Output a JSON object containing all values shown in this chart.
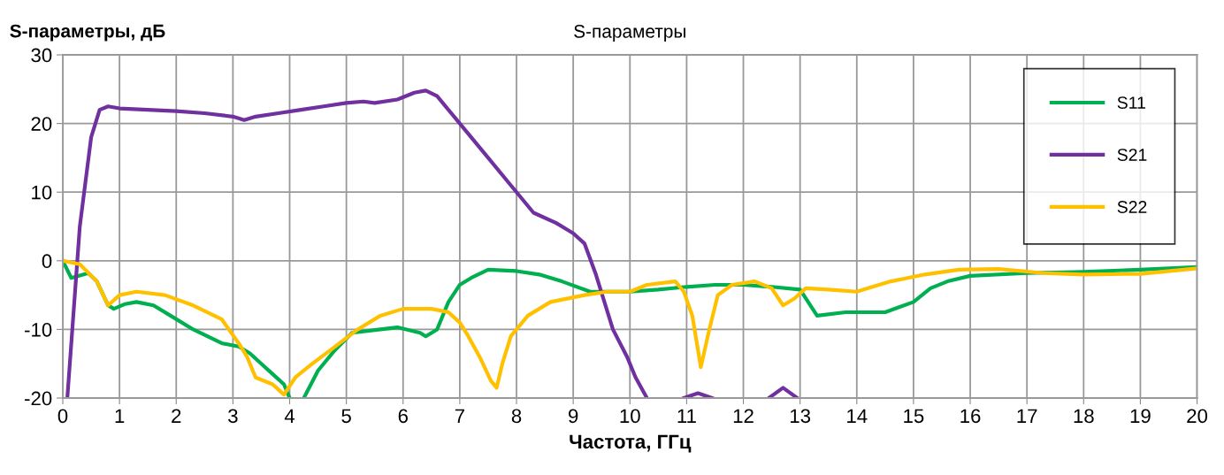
{
  "chart_data": {
    "type": "line",
    "title": "S-параметры",
    "xlabel": "Частота, ГГц",
    "ylabel": "S-параметры, дБ",
    "xlim": [
      0,
      20
    ],
    "xticks": [
      0,
      1,
      2,
      3,
      4,
      5,
      6,
      7,
      8,
      9,
      10,
      11,
      12,
      13,
      14,
      15,
      16,
      17,
      18,
      19,
      20
    ],
    "ylim": [
      -20,
      30
    ],
    "yticks": [
      -20,
      -10,
      0,
      10,
      20,
      30
    ],
    "grid": true,
    "legend": "top right",
    "marker": "none",
    "line_style": "solid",
    "series": [
      {
        "name": "S11",
        "color": "#00b050",
        "x": [
          0,
          0.15,
          0.45,
          0.6,
          0.8,
          0.9,
          1.1,
          1.3,
          1.6,
          1.9,
          2.3,
          2.8,
          3.1,
          3.3,
          3.5,
          3.7,
          3.9,
          4.0,
          4.1,
          4.25,
          4.5,
          4.8,
          5.1,
          5.6,
          5.9,
          6.3,
          6.4,
          6.6,
          6.8,
          7.0,
          7.2,
          7.5,
          8.0,
          8.4,
          8.8,
          9.3,
          10,
          10.5,
          11,
          11.5,
          12,
          12.5,
          13,
          13.3,
          13.8,
          14.5,
          15,
          15.3,
          15.6,
          16,
          17,
          18,
          19,
          20
        ],
        "values": [
          0,
          -2.5,
          -1.8,
          -3,
          -6.5,
          -7,
          -6.3,
          -6,
          -6.5,
          -8,
          -10,
          -12,
          -12.5,
          -13.5,
          -15,
          -16.5,
          -18,
          -20,
          null,
          -20,
          -16,
          -13,
          -10.5,
          -10,
          -9.7,
          -10.5,
          -11,
          -10,
          -6,
          -3.5,
          -2.5,
          -1.3,
          -1.5,
          -2,
          -3,
          -4.5,
          -4.5,
          -4.2,
          -3.8,
          -3.5,
          -3.5,
          -3.8,
          -4.2,
          -8,
          -7.5,
          -7.5,
          -6,
          -4,
          -3,
          -2.2,
          -1.8,
          -1.6,
          -1.3,
          -0.9
        ]
      },
      {
        "name": "S21",
        "color": "#7030a0",
        "x": [
          0.08,
          0.3,
          0.5,
          0.65,
          0.8,
          1,
          1.5,
          2,
          2.5,
          3,
          3.2,
          3.4,
          3.8,
          4.2,
          4.6,
          5,
          5.3,
          5.5,
          5.9,
          6.2,
          6.4,
          6.6,
          7,
          7.5,
          7.9,
          8.3,
          8.7,
          9,
          9.2,
          9.4,
          9.7,
          9.95,
          10.1,
          10.3,
          10.6,
          10.95,
          11.2,
          11.45,
          12,
          12.45,
          12.7,
          12.95
        ],
        "values": [
          -20,
          5,
          18,
          22,
          22.5,
          22.2,
          22,
          21.8,
          21.5,
          21,
          20.5,
          21,
          21.5,
          22,
          22.5,
          23,
          23.2,
          23,
          23.5,
          24.5,
          24.8,
          24,
          20,
          15,
          11,
          7,
          5.5,
          4,
          2.5,
          -2,
          -10,
          -14,
          -17,
          -20,
          null,
          -20,
          -19.3,
          -20,
          null,
          -20,
          -18.5,
          -20
        ]
      },
      {
        "name": "S22",
        "color": "#ffc000",
        "x": [
          0,
          0.3,
          0.6,
          0.8,
          1.0,
          1.3,
          1.8,
          2.3,
          2.8,
          3.1,
          3.25,
          3.4,
          3.7,
          3.9,
          4.1,
          4.4,
          4.8,
          5.2,
          5.6,
          6.0,
          6.5,
          6.8,
          7.0,
          7.15,
          7.35,
          7.55,
          7.65,
          7.75,
          7.9,
          8.2,
          8.6,
          9.2,
          9.6,
          10,
          10.3,
          10.8,
          10.95,
          11.1,
          11.25,
          11.4,
          11.55,
          11.8,
          12.2,
          12.5,
          12.7,
          12.9,
          13.1,
          13.5,
          14,
          14.2,
          14.6,
          15.2,
          15.8,
          16.5,
          17.3,
          18,
          19,
          20
        ],
        "values": [
          0,
          -0.5,
          -3,
          -6.5,
          -5,
          -4.5,
          -5,
          -6.5,
          -8.5,
          -12,
          -14,
          -17,
          -18,
          -19.5,
          -17,
          -15,
          -12.5,
          -10,
          -8,
          -7,
          -7,
          -7.5,
          -9,
          -11,
          -14,
          -17.5,
          -18.5,
          -15,
          -11,
          -8,
          -6,
          -5,
          -4.5,
          -4.5,
          -3.5,
          -3,
          -4.5,
          -8,
          -15.5,
          -10,
          -5,
          -3.5,
          -3,
          -4,
          -6.5,
          -5.5,
          -4,
          -4.2,
          -4.5,
          -4,
          -3,
          -2,
          -1.3,
          -1.2,
          -1.8,
          -2,
          -1.9,
          -1.1
        ]
      }
    ]
  }
}
